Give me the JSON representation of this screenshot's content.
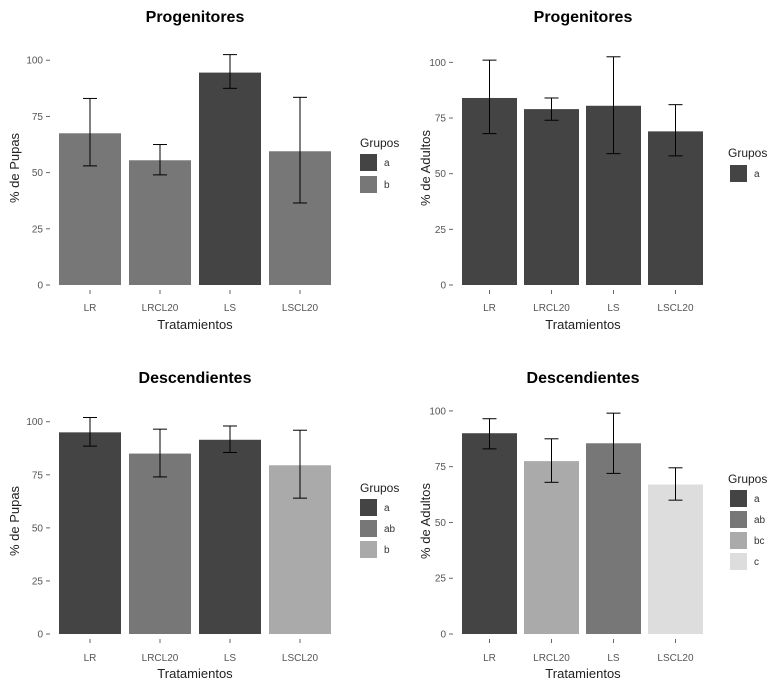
{
  "chart_data": [
    {
      "type": "bar",
      "title": "Progenitores",
      "xlabel": "Tratamientos",
      "ylabel": "% de Pupas",
      "categories": [
        "LR",
        "LRCL20",
        "LS",
        "LSCL20"
      ],
      "values": [
        67.5,
        55.5,
        94.5,
        59.5
      ],
      "error_low": [
        53,
        49,
        87.5,
        36.5
      ],
      "error_high": [
        83,
        62.5,
        102.5,
        83.5
      ],
      "groups": [
        "b",
        "b",
        "a",
        "b"
      ],
      "ylim": [
        0,
        105
      ],
      "yticks": [
        "0",
        "25",
        "50",
        "75",
        "100"
      ],
      "legend": {
        "title": "Grupos",
        "entries": [
          {
            "label": "a",
            "color": "#444444"
          },
          {
            "label": "b",
            "color": "#777777"
          }
        ]
      }
    },
    {
      "type": "bar",
      "title": "Progenitores",
      "xlabel": "Tratamientos",
      "ylabel": "% de Adultos",
      "categories": [
        "LR",
        "LRCL20",
        "LS",
        "LSCL20"
      ],
      "values": [
        84,
        79,
        80.5,
        69
      ],
      "error_low": [
        68,
        74,
        59,
        58
      ],
      "error_high": [
        101,
        84,
        102.5,
        81
      ],
      "groups": [
        "a",
        "a",
        "a",
        "a"
      ],
      "ylim": [
        0,
        106
      ],
      "yticks": [
        "0",
        "25",
        "50",
        "75",
        "100"
      ],
      "legend": {
        "title": "Grupos",
        "entries": [
          {
            "label": "a",
            "color": "#444444"
          }
        ]
      }
    },
    {
      "type": "bar",
      "title": "Descendientes",
      "xlabel": "Tratamientos",
      "ylabel": "% de Pupas",
      "categories": [
        "LR",
        "LRCL20",
        "LS",
        "LSCL20"
      ],
      "values": [
        95,
        85,
        91.5,
        79.5
      ],
      "error_low": [
        88.5,
        74,
        85.5,
        64
      ],
      "error_high": [
        102,
        96.5,
        98,
        96
      ],
      "groups": [
        "a",
        "ab",
        "a",
        "b"
      ],
      "ylim": [
        0,
        106
      ],
      "yticks": [
        "0",
        "25",
        "50",
        "75",
        "100"
      ],
      "legend": {
        "title": "Grupos",
        "entries": [
          {
            "label": "a",
            "color": "#444444"
          },
          {
            "label": "ab",
            "color": "#777777"
          },
          {
            "label": "b",
            "color": "#aaaaaa"
          }
        ]
      }
    },
    {
      "type": "bar",
      "title": "Descendientes",
      "xlabel": "Tratamientos",
      "ylabel": "% de Adultos",
      "categories": [
        "LR",
        "LRCL20",
        "LS",
        "LSCL20"
      ],
      "values": [
        90,
        77.5,
        85.5,
        67
      ],
      "error_low": [
        83,
        68,
        72,
        60
      ],
      "error_high": [
        96.5,
        87.5,
        99,
        74.5
      ],
      "groups": [
        "a",
        "bc",
        "ab",
        "c"
      ],
      "ylim": [
        0,
        104
      ],
      "yticks": [
        "0",
        "25",
        "50",
        "75",
        "100"
      ],
      "legend": {
        "title": "Grupos",
        "entries": [
          {
            "label": "a",
            "color": "#444444"
          },
          {
            "label": "ab",
            "color": "#777777"
          },
          {
            "label": "bc",
            "color": "#aaaaaa"
          },
          {
            "label": "c",
            "color": "#dddddd"
          }
        ]
      }
    }
  ]
}
